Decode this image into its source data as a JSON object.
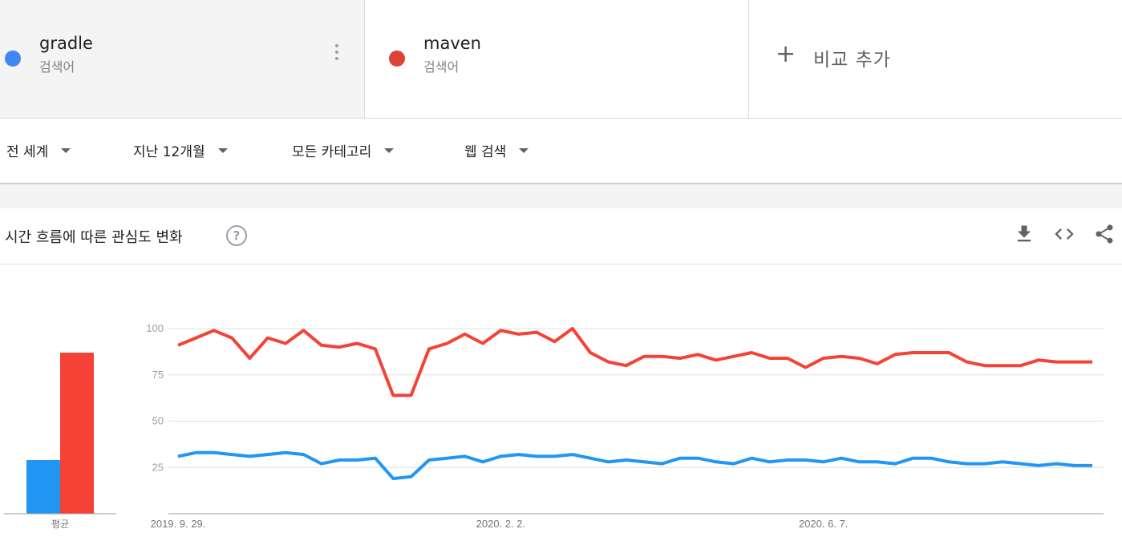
{
  "terms": [
    {
      "name": "gradle",
      "sub": "검색어",
      "color": "#4285f4"
    },
    {
      "name": "maven",
      "sub": "검색어",
      "color": "#db4437"
    }
  ],
  "add_compare": {
    "label": "비교 추가"
  },
  "filters": {
    "region": "전 세계",
    "period": "지난 12개월",
    "category": "모든 카테고리",
    "search_type": "웹 검색"
  },
  "section": {
    "title": "시간 흐름에 따른 관심도 변화",
    "help": "?"
  },
  "toolbar_icons": [
    "download-icon",
    "embed-icon",
    "share-icon"
  ],
  "average_label": "평균",
  "chart_data": {
    "type": "line",
    "ylim": [
      0,
      100
    ],
    "y_ticks": [
      "25",
      "50",
      "75",
      "100"
    ],
    "x_tick_labels": [
      "2019. 9. 29.",
      "2020. 2. 2.",
      "2020. 6. 7."
    ],
    "x_tick_index": [
      0,
      18,
      36
    ],
    "series": [
      {
        "name": "maven",
        "color": "#f44336",
        "values": [
          91,
          95,
          99,
          95,
          84,
          95,
          92,
          99,
          91,
          90,
          92,
          89,
          64,
          64,
          89,
          92,
          97,
          92,
          99,
          97,
          98,
          93,
          100,
          87,
          82,
          80,
          85,
          85,
          84,
          86,
          83,
          85,
          87,
          84,
          84,
          79,
          84,
          85,
          84,
          81,
          86,
          87,
          87,
          87,
          82,
          80,
          80,
          80,
          83,
          82,
          82,
          82
        ]
      },
      {
        "name": "gradle",
        "color": "#2196f3",
        "values": [
          31,
          33,
          33,
          32,
          31,
          32,
          33,
          32,
          27,
          29,
          29,
          30,
          19,
          20,
          29,
          30,
          31,
          28,
          31,
          32,
          31,
          31,
          32,
          30,
          28,
          29,
          28,
          27,
          30,
          30,
          28,
          27,
          30,
          28,
          29,
          29,
          28,
          30,
          28,
          28,
          27,
          30,
          30,
          28,
          27,
          27,
          28,
          27,
          26,
          27,
          26,
          26
        ]
      }
    ],
    "averages": [
      {
        "name": "gradle",
        "value": 29,
        "color": "#2196f3"
      },
      {
        "name": "maven",
        "value": 87,
        "color": "#f44336"
      }
    ]
  }
}
